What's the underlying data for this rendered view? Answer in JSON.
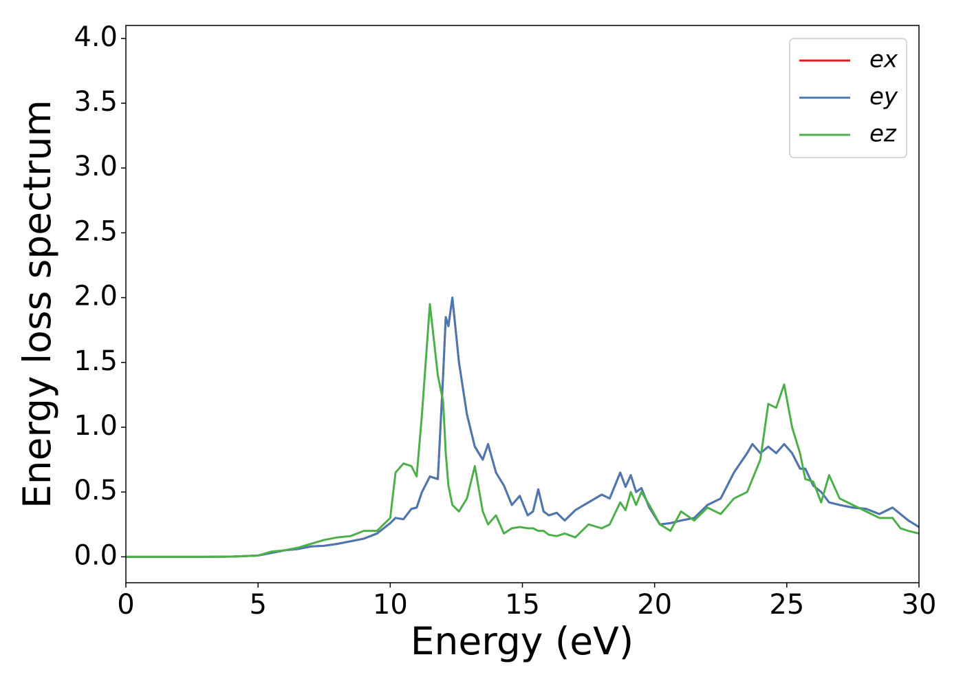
{
  "chart_data": {
    "type": "line",
    "xlabel": "Energy (eV)",
    "ylabel": "Energy loss spectrum",
    "x": [
      0,
      1,
      2,
      3,
      4,
      5,
      5.5,
      6,
      6.5,
      7,
      7.5,
      8,
      8.5,
      9,
      9.5,
      10,
      10.2,
      10.5,
      10.8,
      11,
      11.2,
      11.5,
      11.8,
      12,
      12.1,
      12.2,
      12.35,
      12.6,
      12.9,
      13.2,
      13.5,
      13.7,
      14,
      14.3,
      14.6,
      14.9,
      15.2,
      15.4,
      15.6,
      15.8,
      16,
      16.3,
      16.6,
      17,
      17.5,
      18,
      18.3,
      18.7,
      18.9,
      19.1,
      19.3,
      19.5,
      19.8,
      20.2,
      20.6,
      21,
      21.5,
      22,
      22.5,
      23,
      23.5,
      23.7,
      24,
      24.3,
      24.6,
      24.9,
      25.2,
      25.5,
      25.7,
      26,
      26.3,
      26.6,
      27,
      27.5,
      28,
      28.5,
      29,
      29.3,
      29.6,
      30
    ],
    "series": [
      {
        "name": "ex",
        "color": "#e41a1c",
        "values": [
          0,
          0,
          0,
          0,
          0.002,
          0.01,
          0.03,
          0.05,
          0.06,
          0.08,
          0.085,
          0.1,
          0.12,
          0.14,
          0.18,
          0.26,
          0.3,
          0.29,
          0.37,
          0.38,
          0.5,
          0.62,
          0.6,
          1.4,
          1.85,
          1.78,
          2.0,
          1.5,
          1.1,
          0.85,
          0.75,
          0.87,
          0.65,
          0.55,
          0.4,
          0.47,
          0.32,
          0.35,
          0.52,
          0.35,
          0.32,
          0.34,
          0.28,
          0.36,
          0.42,
          0.48,
          0.45,
          0.65,
          0.54,
          0.63,
          0.5,
          0.53,
          0.38,
          0.25,
          0.26,
          0.28,
          0.3,
          0.4,
          0.45,
          0.65,
          0.8,
          0.87,
          0.8,
          0.85,
          0.8,
          0.87,
          0.8,
          0.68,
          0.68,
          0.55,
          0.5,
          0.42,
          0.4,
          0.38,
          0.37,
          0.33,
          0.38,
          0.33,
          0.28,
          0.23
        ]
      },
      {
        "name": "ey",
        "color": "#4a78b0",
        "values": [
          0,
          0,
          0,
          0,
          0.002,
          0.01,
          0.03,
          0.05,
          0.06,
          0.08,
          0.085,
          0.1,
          0.12,
          0.14,
          0.18,
          0.26,
          0.3,
          0.29,
          0.37,
          0.38,
          0.5,
          0.62,
          0.6,
          1.4,
          1.85,
          1.78,
          2.0,
          1.5,
          1.1,
          0.85,
          0.75,
          0.87,
          0.65,
          0.55,
          0.4,
          0.47,
          0.32,
          0.35,
          0.52,
          0.35,
          0.32,
          0.34,
          0.28,
          0.36,
          0.42,
          0.48,
          0.45,
          0.65,
          0.54,
          0.63,
          0.5,
          0.53,
          0.38,
          0.25,
          0.26,
          0.28,
          0.3,
          0.4,
          0.45,
          0.65,
          0.8,
          0.87,
          0.8,
          0.85,
          0.8,
          0.87,
          0.8,
          0.68,
          0.68,
          0.55,
          0.5,
          0.42,
          0.4,
          0.38,
          0.37,
          0.33,
          0.38,
          0.33,
          0.28,
          0.23
        ]
      },
      {
        "name": "ez",
        "color": "#4daf4a",
        "values": [
          0,
          0,
          0,
          0,
          0.002,
          0.01,
          0.04,
          0.05,
          0.07,
          0.1,
          0.13,
          0.15,
          0.16,
          0.2,
          0.2,
          0.3,
          0.65,
          0.72,
          0.7,
          0.62,
          1.1,
          1.95,
          1.4,
          1.2,
          0.8,
          0.55,
          0.4,
          0.35,
          0.45,
          0.7,
          0.35,
          0.25,
          0.32,
          0.18,
          0.22,
          0.23,
          0.22,
          0.22,
          0.2,
          0.2,
          0.17,
          0.16,
          0.18,
          0.15,
          0.25,
          0.22,
          0.25,
          0.42,
          0.36,
          0.5,
          0.4,
          0.5,
          0.4,
          0.25,
          0.2,
          0.35,
          0.28,
          0.38,
          0.33,
          0.45,
          0.5,
          0.6,
          0.75,
          1.18,
          1.15,
          1.33,
          1.0,
          0.8,
          0.6,
          0.58,
          0.42,
          0.63,
          0.45,
          0.4,
          0.35,
          0.3,
          0.3,
          0.22,
          0.2,
          0.18
        ]
      }
    ],
    "xlim": [
      0,
      30
    ],
    "xticks": [
      0,
      5,
      10,
      15,
      20,
      25,
      30
    ],
    "ylim": [
      -0.2,
      4.1
    ],
    "yticks": [
      {
        "value": 0,
        "label": "0.0"
      },
      {
        "value": 0.5,
        "label": "0.5"
      },
      {
        "value": 1,
        "label": "1.0"
      },
      {
        "value": 1.5,
        "label": "1.5"
      },
      {
        "value": 2,
        "label": "2.0"
      },
      {
        "value": 2.5,
        "label": "2.5"
      },
      {
        "value": 3,
        "label": "3.0"
      },
      {
        "value": 3.5,
        "label": "3.5"
      },
      {
        "value": 4,
        "label": "4.0"
      }
    ],
    "legend": "upper right",
    "grid": false
  }
}
